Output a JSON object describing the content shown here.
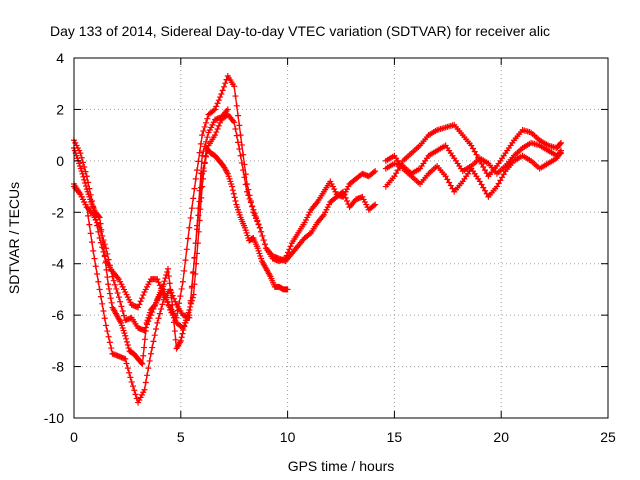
{
  "chart_data": {
    "type": "scatter",
    "title": "Day 133 of 2014, Sidereal Day-to-day VTEC variation (SDTVAR) for receiver alic",
    "xlabel": "GPS time / hours",
    "ylabel": "SDTVAR / TECUs",
    "xlim": [
      0,
      25
    ],
    "ylim": [
      -10,
      4
    ],
    "xticks": [
      0,
      5,
      10,
      15,
      20,
      25
    ],
    "yticks": [
      -10,
      -8,
      -6,
      -4,
      -2,
      0,
      2,
      4
    ],
    "grid": true,
    "legend": "none",
    "marker": "+",
    "color": "#ff0000",
    "series": [
      {
        "x": [
          0.0,
          0.3,
          0.6,
          0.9,
          1.2,
          1.5,
          1.8,
          2.1,
          2.4,
          2.7,
          3.0,
          3.3,
          3.6,
          3.9,
          4.2,
          4.5,
          4.8,
          5.1,
          5.4,
          5.7,
          6.0,
          6.3,
          6.6,
          6.9,
          7.2,
          7.5,
          7.8,
          8.1,
          8.4,
          8.7,
          9.0,
          9.3,
          9.6,
          9.9,
          10.2,
          10.5,
          10.8,
          11.1,
          11.4,
          11.7,
          12.0,
          12.3,
          12.6,
          12.9,
          13.2,
          13.5,
          13.8,
          14.1
        ],
        "y": [
          0.8,
          0.3,
          -0.6,
          -1.8,
          -3.0,
          -3.9,
          -4.3,
          -4.6,
          -5.1,
          -5.6,
          -5.7,
          -5.1,
          -4.6,
          -4.6,
          -5.2,
          -5.7,
          -6.1,
          -4.7,
          -2.6,
          -0.7,
          1.0,
          1.8,
          2.0,
          2.6,
          3.3,
          2.9,
          1.0,
          -0.9,
          -2.0,
          -2.6,
          -3.4,
          -3.8,
          -3.9,
          -3.8,
          -3.2,
          -2.8,
          -2.4,
          -1.9,
          -1.6,
          -1.2,
          -0.8,
          -1.3,
          -1.4,
          -0.9,
          -0.7,
          -0.5,
          -0.6,
          -0.4
        ]
      },
      {
        "x": [
          0.0,
          0.3,
          0.6,
          0.9,
          1.2,
          1.5,
          1.8,
          2.1,
          2.4,
          2.7,
          3.0,
          3.3,
          3.6,
          3.9,
          4.2,
          4.5,
          4.8,
          5.1,
          5.4,
          5.7,
          6.0,
          6.3,
          6.6,
          6.9,
          7.2,
          7.5,
          7.8,
          8.1,
          8.4,
          8.7,
          9.0,
          9.3,
          9.6,
          9.9,
          10.2,
          10.5,
          10.8,
          11.1,
          11.4,
          11.7,
          12.0,
          12.3,
          12.6,
          12.9,
          13.2,
          13.5,
          13.8,
          14.1
        ],
        "y": [
          -0.9,
          -1.3,
          -1.8,
          -2.1,
          -2.6,
          -3.4,
          -4.5,
          -5.3,
          -6.2,
          -6.1,
          -6.5,
          -6.6,
          -6.0,
          -5.4,
          -5.0,
          -5.8,
          -6.3,
          -6.5,
          -6.0,
          -3.2,
          -0.5,
          0.6,
          1.0,
          1.6,
          1.8,
          1.5,
          0.2,
          -1.2,
          -1.9,
          -2.6,
          -3.4,
          -3.7,
          -3.8,
          -3.9,
          -3.6,
          -3.3,
          -3.0,
          -2.8,
          -2.4,
          -2.1,
          -1.6,
          -1.4,
          -1.2,
          -1.8,
          -1.5,
          -1.4,
          -1.9,
          -1.7
        ]
      },
      {
        "x": [
          0.0,
          0.2,
          0.4,
          0.6,
          0.8,
          1.0,
          1.2,
          1.4,
          1.6,
          1.8,
          2.0,
          2.2,
          2.4,
          2.6,
          2.8,
          3.0,
          3.2,
          3.4,
          3.6,
          3.8,
          4.0,
          4.2,
          4.4,
          4.6,
          4.8,
          5.0,
          5.2,
          5.4,
          5.6,
          5.8,
          6.0,
          6.2,
          6.4,
          6.6,
          6.8,
          7.0,
          7.2,
          7.4,
          7.6,
          7.8,
          8.0,
          8.2,
          8.4,
          8.6,
          8.8,
          9.0,
          9.2,
          9.4,
          9.6,
          9.8,
          10.0
        ],
        "y": [
          0.5,
          0.0,
          -0.5,
          -1.1,
          -1.6,
          -2.0,
          -2.2,
          -3.4,
          -4.8,
          -5.7,
          -6.0,
          -6.3,
          -6.8,
          -7.4,
          -7.5,
          -7.7,
          -7.9,
          -6.3,
          -5.8,
          -5.6,
          -5.2,
          -4.8,
          -4.2,
          -5.6,
          -7.3,
          -7.0,
          -6.3,
          -5.8,
          -5.2,
          -3.2,
          -1.0,
          0.5,
          0.3,
          0.2,
          0.0,
          -0.2,
          -0.5,
          -1.0,
          -1.7,
          -2.2,
          -2.6,
          -3.1,
          -3.0,
          -3.4,
          -3.9,
          -4.2,
          -4.5,
          -4.9,
          -4.9,
          -5.0,
          -5.0
        ]
      },
      {
        "x": [
          0.0,
          0.3,
          0.6,
          0.9,
          1.2,
          1.5,
          1.8,
          2.1,
          2.4,
          2.7,
          3.0,
          3.3,
          3.6,
          3.9,
          4.2,
          4.5,
          4.8,
          5.1,
          5.4,
          5.7,
          6.0,
          6.3,
          6.6,
          6.9,
          7.2
        ],
        "y": [
          -1.0,
          -1.3,
          -1.8,
          -3.5,
          -5.0,
          -6.4,
          -7.5,
          -7.6,
          -7.7,
          -8.6,
          -9.4,
          -8.9,
          -7.5,
          -6.3,
          -5.4,
          -5.0,
          -5.6,
          -6.0,
          -6.1,
          -3.2,
          0.2,
          1.1,
          1.6,
          1.7,
          2.0
        ]
      },
      {
        "x": [
          14.6,
          15.0,
          15.4,
          15.8,
          16.2,
          16.6,
          17.0,
          17.4,
          17.8,
          18.2,
          18.6,
          19.0,
          19.4,
          19.8,
          20.2,
          20.6,
          21.0,
          21.4,
          21.8,
          22.2,
          22.6,
          22.8
        ],
        "y": [
          -1.0,
          -0.6,
          0.0,
          0.3,
          0.6,
          1.0,
          1.2,
          1.3,
          1.4,
          1.0,
          0.6,
          0.0,
          -0.6,
          -0.2,
          0.3,
          0.8,
          1.2,
          1.1,
          0.8,
          0.6,
          0.5,
          0.7
        ]
      },
      {
        "x": [
          14.6,
          15.0,
          15.4,
          15.8,
          16.2,
          16.6,
          17.0,
          17.4,
          17.8,
          18.2,
          18.6,
          19.0,
          19.4,
          19.8,
          20.2,
          20.6,
          21.0,
          21.4,
          21.8,
          22.2,
          22.6,
          22.8
        ],
        "y": [
          -0.3,
          -0.1,
          -0.2,
          -0.5,
          -0.3,
          0.2,
          0.4,
          0.6,
          0.1,
          -0.4,
          -0.2,
          0.1,
          -0.1,
          -0.5,
          -0.2,
          0.2,
          0.5,
          0.7,
          0.6,
          0.4,
          0.2,
          0.3
        ]
      },
      {
        "x": [
          14.6,
          15.0,
          15.4,
          15.8,
          16.2,
          16.6,
          17.0,
          17.4,
          17.8,
          18.2,
          18.6,
          19.0,
          19.4,
          19.8,
          20.2,
          20.6,
          21.0,
          21.4,
          21.8,
          22.2,
          22.6,
          22.8
        ],
        "y": [
          0.0,
          0.2,
          -0.3,
          -0.6,
          -0.9,
          -0.5,
          -0.2,
          -0.6,
          -1.2,
          -0.8,
          -0.3,
          -0.8,
          -1.4,
          -1.0,
          -0.4,
          0.0,
          0.2,
          0.0,
          -0.3,
          -0.1,
          0.1,
          0.4
        ]
      }
    ]
  }
}
